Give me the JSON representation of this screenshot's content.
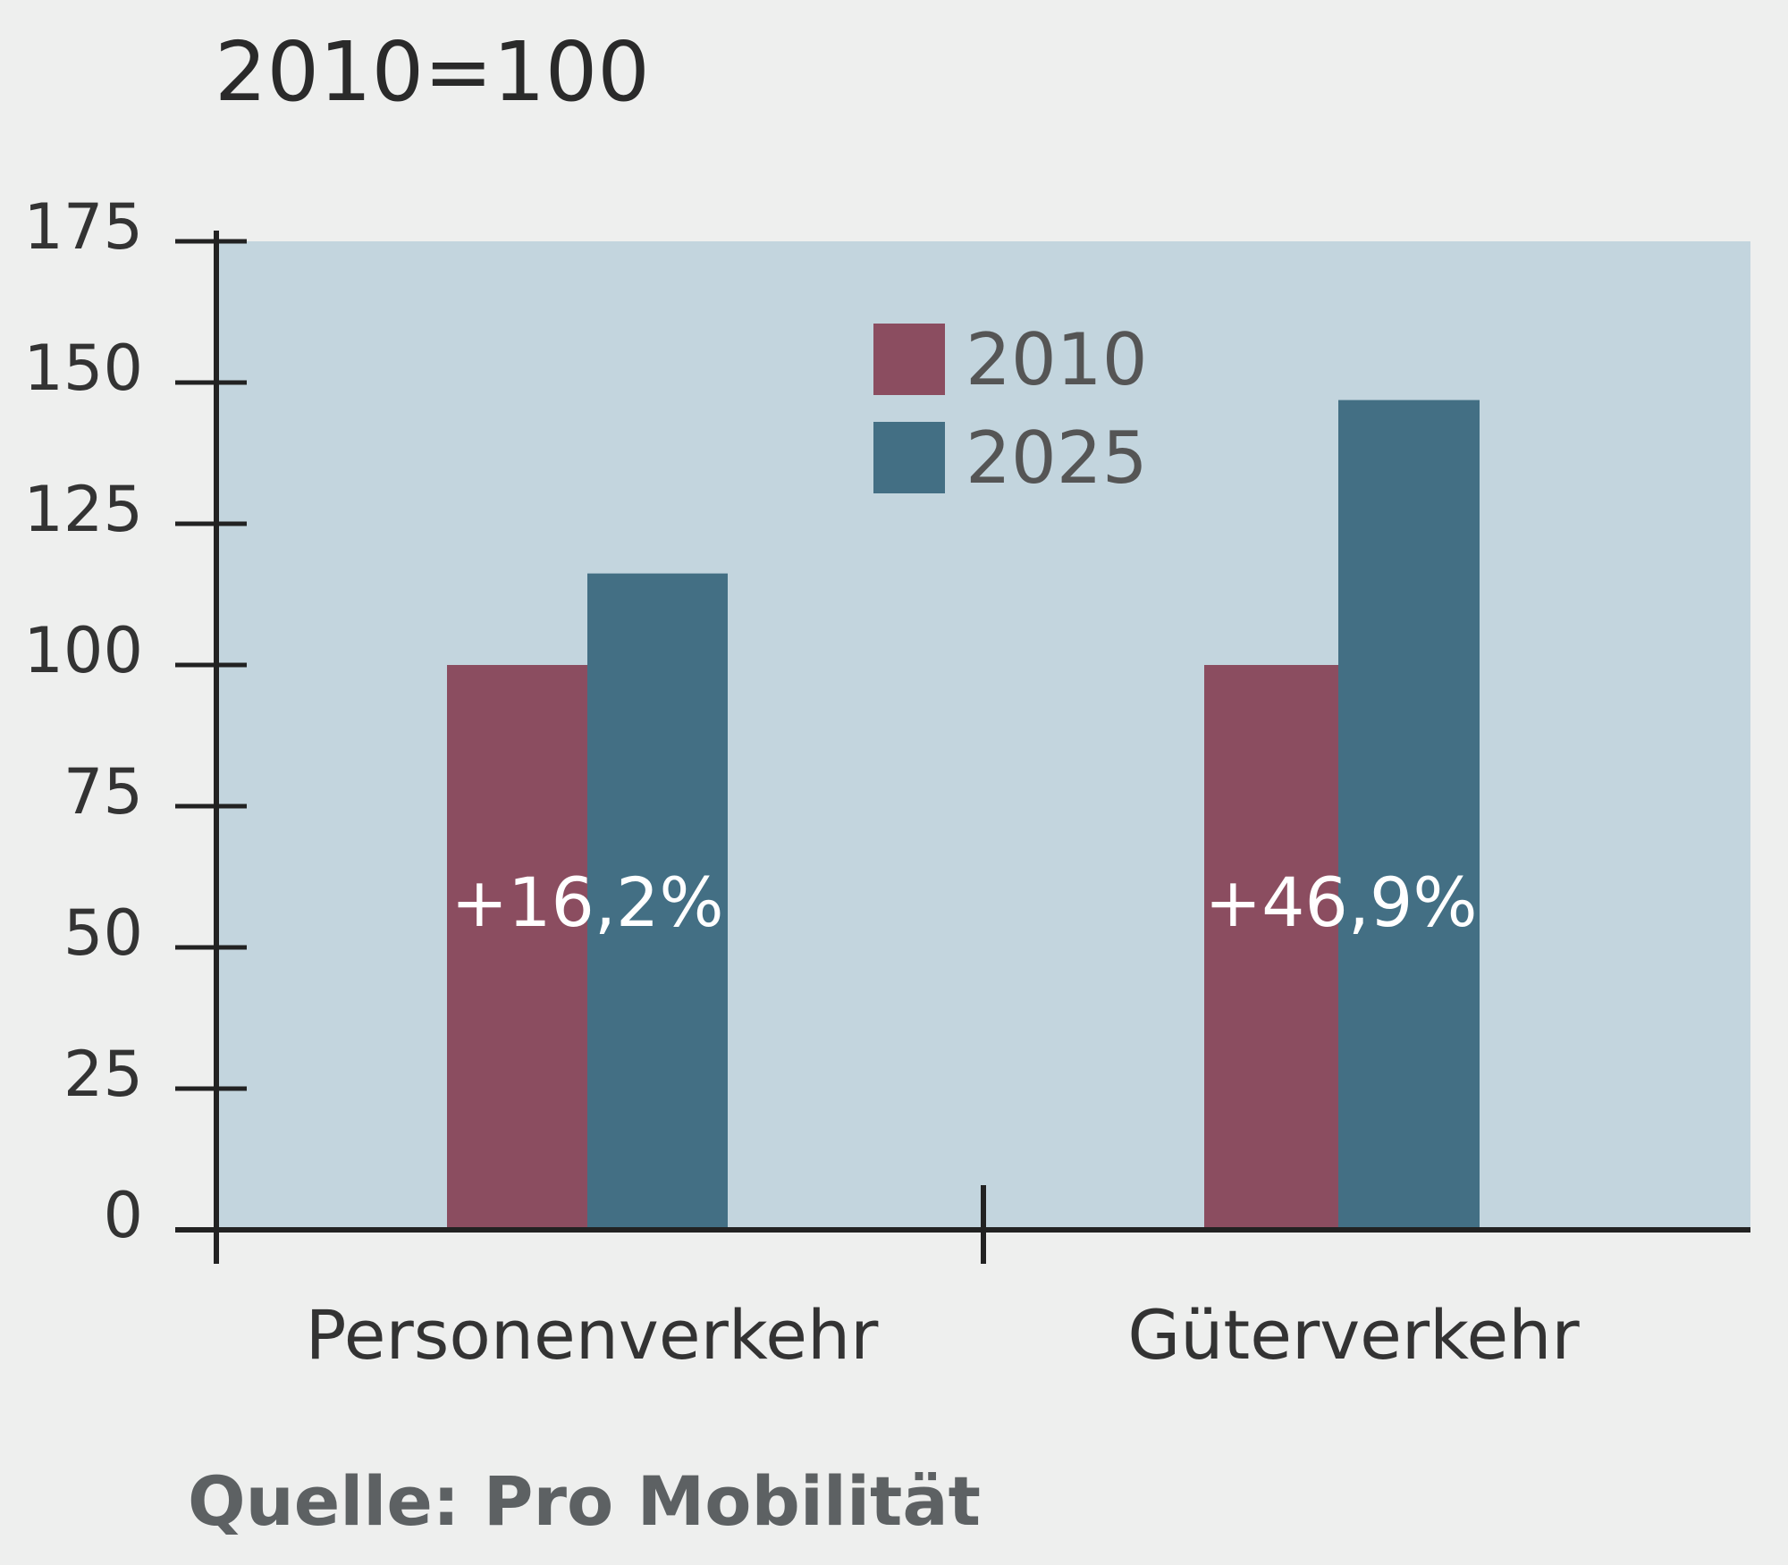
{
  "chart_data": {
    "type": "bar",
    "title": "2010=100",
    "categories": [
      "Personenverkehr",
      "Güterverkehr"
    ],
    "series": [
      {
        "name": "2010",
        "values": [
          100,
          100
        ]
      },
      {
        "name": "2025",
        "values": [
          116.2,
          146.9
        ]
      }
    ],
    "annotations": [
      "+16,2%",
      "+46,9%"
    ],
    "ylim": [
      0,
      175
    ],
    "yticks": [
      0,
      25,
      50,
      75,
      100,
      125,
      150,
      175
    ],
    "legend_position": "top-center",
    "grid": false,
    "source": "Quelle: Pro Mobilität",
    "colors": {
      "2010": "#8b4d60",
      "2025": "#436f84",
      "plot_background": "#c3d5de",
      "page_background": "#eeefee",
      "axis": "#222222",
      "text": "#333333",
      "source_text": "#5d6163",
      "annotation_text": "#ffffff"
    }
  }
}
